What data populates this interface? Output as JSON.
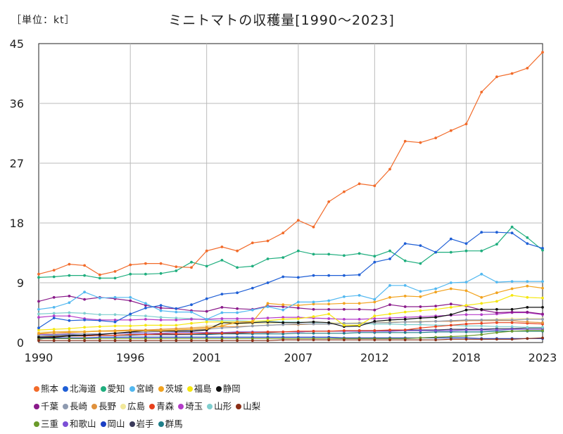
{
  "unit_label": "［単位：kt］",
  "title": "ミニトマトの収穫量[1990～2023]",
  "chart_data": {
    "type": "line",
    "title": "ミニトマトの収穫量[1990～2023]",
    "unit": "［単位：kt］",
    "xlabel": "",
    "ylabel": "",
    "x": [
      1990,
      1991,
      1992,
      1993,
      1994,
      1995,
      1996,
      1997,
      1998,
      1999,
      2000,
      2001,
      2002,
      2003,
      2004,
      2005,
      2006,
      2007,
      2008,
      2009,
      2010,
      2011,
      2012,
      2013,
      2014,
      2015,
      2016,
      2017,
      2018,
      2019,
      2020,
      2021,
      2022,
      2023
    ],
    "xlim": [
      1990,
      2023
    ],
    "ylim": [
      0,
      45
    ],
    "x_ticks": [
      1990,
      1996,
      2001,
      2007,
      2012,
      2018,
      2023
    ],
    "y_ticks": [
      0,
      9,
      18,
      27,
      36,
      45
    ],
    "grid": true,
    "legend_position": "bottom",
    "series": [
      {
        "name": "熊本",
        "color": "#f26b2a",
        "values": [
          10.3,
          10.9,
          11.8,
          11.6,
          10.2,
          10.7,
          11.7,
          11.9,
          11.9,
          11.4,
          11.3,
          13.8,
          14.4,
          13.8,
          15.0,
          15.3,
          16.5,
          18.4,
          17.4,
          21.2,
          22.7,
          23.9,
          23.6,
          26.1,
          30.3,
          30.1,
          30.8,
          31.9,
          32.9,
          37.7,
          40.0,
          40.5,
          41.3,
          43.7
        ]
      },
      {
        "name": "北海道",
        "color": "#1f5fd6",
        "values": [
          2.2,
          3.7,
          3.3,
          3.4,
          3.3,
          3.1,
          4.3,
          5.2,
          5.6,
          5.1,
          5.7,
          6.6,
          7.3,
          7.5,
          8.2,
          9.0,
          9.9,
          9.8,
          10.1,
          10.1,
          10.1,
          10.2,
          12.1,
          12.6,
          14.9,
          14.6,
          13.6,
          15.6,
          14.9,
          16.6,
          16.6,
          16.5,
          14.9,
          14.2
        ]
      },
      {
        "name": "愛知",
        "color": "#1fae7e",
        "values": [
          9.8,
          9.9,
          10.1,
          10.1,
          9.7,
          9.7,
          10.3,
          10.3,
          10.4,
          10.8,
          12.1,
          11.5,
          12.4,
          11.3,
          11.5,
          12.6,
          12.8,
          13.8,
          13.3,
          13.3,
          13.1,
          13.4,
          13.0,
          13.8,
          12.3,
          11.9,
          13.6,
          13.6,
          13.8,
          13.8,
          14.8,
          17.4,
          15.8,
          13.9
        ]
      },
      {
        "name": "宮崎",
        "color": "#52b8f0",
        "values": [
          5.0,
          5.3,
          6.0,
          7.6,
          6.7,
          6.8,
          6.8,
          5.9,
          4.8,
          4.6,
          4.6,
          3.5,
          4.5,
          4.5,
          4.9,
          5.4,
          4.9,
          6.1,
          6.1,
          6.3,
          6.9,
          7.1,
          6.5,
          8.6,
          8.6,
          7.7,
          8.1,
          9.0,
          9.1,
          10.3,
          9.1,
          9.2,
          9.2,
          9.2
        ]
      },
      {
        "name": "茨城",
        "color": "#f2a31f",
        "values": [
          1.4,
          1.6,
          1.6,
          1.6,
          1.7,
          1.7,
          1.8,
          1.8,
          1.8,
          1.9,
          2.0,
          2.1,
          2.5,
          3.1,
          3.1,
          5.9,
          5.7,
          5.6,
          5.8,
          5.8,
          5.9,
          5.9,
          6.1,
          6.8,
          7.0,
          6.9,
          7.6,
          8.1,
          7.8,
          6.8,
          7.5,
          8.1,
          8.5,
          8.2
        ]
      },
      {
        "name": "福島",
        "color": "#f5e70f",
        "values": [
          1.9,
          2.0,
          2.1,
          2.3,
          2.4,
          2.5,
          2.5,
          2.6,
          2.6,
          2.6,
          2.9,
          3.1,
          3.1,
          3.1,
          3.2,
          3.3,
          3.5,
          3.6,
          3.9,
          4.3,
          2.6,
          2.6,
          4.0,
          4.3,
          4.6,
          4.8,
          5.0,
          5.3,
          5.6,
          5.9,
          6.2,
          7.1,
          6.8,
          6.7
        ]
      },
      {
        "name": "静岡",
        "color": "#111111",
        "values": [
          0.8,
          0.8,
          1.0,
          1.1,
          1.2,
          1.4,
          1.6,
          1.8,
          1.7,
          1.7,
          1.7,
          1.9,
          3.0,
          2.9,
          3.0,
          3.1,
          3.0,
          3.0,
          3.1,
          3.0,
          2.4,
          2.5,
          3.2,
          3.4,
          3.5,
          3.7,
          3.8,
          4.2,
          4.9,
          5.0,
          5.0,
          5.0,
          5.3,
          5.3
        ]
      },
      {
        "name": "千葉",
        "color": "#8a1a8a",
        "values": [
          6.2,
          6.8,
          7.0,
          6.5,
          6.8,
          6.6,
          6.3,
          5.6,
          5.2,
          5.1,
          4.8,
          4.7,
          5.3,
          5.1,
          5.0,
          5.5,
          5.4,
          5.2,
          5.0,
          5.0,
          5.0,
          5.0,
          4.9,
          5.7,
          5.4,
          5.4,
          5.5,
          5.8,
          5.5,
          4.9,
          4.5,
          4.6,
          4.6,
          4.3
        ]
      },
      {
        "name": "長崎",
        "color": "#8e9ab0",
        "values": [
          1.0,
          1.1,
          1.2,
          1.3,
          1.3,
          1.4,
          1.5,
          1.6,
          1.7,
          1.8,
          1.9,
          2.0,
          2.2,
          2.3,
          2.5,
          2.6,
          2.7,
          2.8,
          2.8,
          2.8,
          2.9,
          2.9,
          3.0,
          3.0,
          3.1,
          3.1,
          3.2,
          3.3,
          3.4,
          3.4,
          3.4,
          3.4,
          3.5,
          3.5
        ]
      },
      {
        "name": "長野",
        "color": "#e0913d",
        "values": [
          1.3,
          1.4,
          1.5,
          1.6,
          1.7,
          1.8,
          1.9,
          1.9,
          2.0,
          2.1,
          2.2,
          2.3,
          2.4,
          2.4,
          2.5,
          2.6,
          2.7,
          2.7,
          2.8,
          2.8,
          2.9,
          2.9,
          3.0,
          3.0,
          3.1,
          3.1,
          3.2,
          3.2,
          3.3,
          3.3,
          3.3,
          3.3,
          3.1,
          3.0
        ]
      },
      {
        "name": "広島",
        "color": "#f2e89a",
        "values": [
          1.6,
          1.6,
          1.7,
          1.7,
          1.8,
          1.8,
          1.8,
          1.9,
          1.9,
          2.0,
          2.2,
          2.5,
          2.7,
          2.8,
          2.9,
          2.9,
          3.0,
          3.0,
          3.1,
          3.0,
          2.9,
          3.0,
          3.0,
          3.1,
          3.1,
          3.2,
          3.2,
          3.3,
          3.3,
          3.4,
          3.5,
          3.6,
          3.6,
          3.6
        ]
      },
      {
        "name": "青森",
        "color": "#e8401c",
        "values": [
          0.8,
          0.9,
          1.0,
          1.0,
          1.1,
          1.1,
          1.2,
          1.2,
          1.3,
          1.3,
          1.3,
          1.4,
          1.4,
          1.5,
          1.5,
          1.6,
          1.6,
          1.7,
          1.7,
          1.7,
          1.8,
          1.8,
          1.8,
          1.9,
          1.9,
          2.2,
          2.4,
          2.6,
          2.8,
          2.9,
          3.0,
          3.0,
          2.9,
          2.8
        ]
      },
      {
        "name": "埼玉",
        "color": "#b43cc9",
        "values": [
          3.8,
          4.0,
          4.0,
          3.6,
          3.4,
          3.4,
          3.4,
          3.5,
          3.4,
          3.4,
          3.5,
          3.5,
          3.6,
          3.6,
          3.6,
          3.7,
          3.8,
          3.8,
          3.7,
          3.6,
          3.5,
          3.5,
          3.6,
          3.7,
          3.8,
          3.9,
          4.0,
          4.1,
          4.2,
          4.2,
          4.3,
          4.5,
          4.5,
          4.2
        ]
      },
      {
        "name": "山形",
        "color": "#7fcfcf",
        "values": [
          4.3,
          4.4,
          4.5,
          4.4,
          4.2,
          4.2,
          4.1,
          4.0,
          3.8,
          3.7,
          3.6,
          3.4,
          3.3,
          3.3,
          3.2,
          3.2,
          3.1,
          3.1,
          3.0,
          3.0,
          2.9,
          2.9,
          2.8,
          2.8,
          2.7,
          2.7,
          2.6,
          2.6,
          2.5,
          2.5,
          2.4,
          2.4,
          2.3,
          2.3
        ]
      },
      {
        "name": "山梨",
        "color": "#8b2e16",
        "values": [
          0.3,
          0.3,
          0.3,
          0.3,
          0.3,
          0.3,
          0.3,
          0.3,
          0.3,
          0.3,
          0.3,
          0.3,
          0.3,
          0.3,
          0.3,
          0.3,
          0.4,
          0.4,
          0.4,
          0.4,
          0.4,
          0.4,
          0.4,
          0.4,
          0.4,
          0.4,
          0.4,
          0.5,
          0.5,
          0.5,
          0.5,
          0.5,
          0.6,
          0.7
        ]
      },
      {
        "name": "三重",
        "color": "#6a9a2a",
        "values": [
          0.6,
          0.6,
          0.6,
          0.6,
          0.6,
          0.6,
          0.6,
          0.6,
          0.6,
          0.6,
          0.6,
          0.6,
          0.6,
          0.6,
          0.6,
          0.6,
          0.6,
          0.6,
          0.6,
          0.6,
          0.6,
          0.6,
          0.6,
          0.6,
          0.6,
          0.7,
          0.8,
          0.9,
          1.0,
          1.2,
          1.5,
          1.7,
          1.8,
          1.8
        ]
      },
      {
        "name": "和歌山",
        "color": "#7b4fd6",
        "values": [
          1.2,
          1.2,
          1.3,
          1.3,
          1.3,
          1.4,
          1.4,
          1.4,
          1.4,
          1.5,
          1.5,
          1.5,
          1.5,
          1.6,
          1.6,
          1.6,
          1.6,
          1.6,
          1.7,
          1.7,
          1.7,
          1.7,
          1.7,
          1.7,
          1.8,
          1.8,
          1.8,
          1.8,
          1.9,
          1.9,
          1.9,
          2.0,
          2.0,
          2.0
        ]
      },
      {
        "name": "岡山",
        "color": "#1a3fc4",
        "values": [
          0.7,
          0.7,
          0.7,
          0.7,
          0.8,
          0.8,
          0.8,
          0.8,
          0.8,
          0.8,
          0.8,
          0.8,
          0.8,
          0.8,
          0.8,
          0.8,
          0.8,
          0.8,
          0.8,
          0.8,
          0.7,
          0.7,
          0.7,
          0.7,
          0.7,
          0.7,
          0.7,
          0.7,
          0.7,
          0.6,
          0.6,
          0.6,
          0.6,
          0.6
        ]
      },
      {
        "name": "岩手",
        "color": "#3a3a5a",
        "values": [
          0.5,
          0.8,
          1.1,
          1.0,
          1.1,
          1.1,
          1.2,
          1.2,
          1.2,
          1.2,
          1.3,
          1.3,
          1.4,
          1.4,
          1.5,
          1.5,
          1.6,
          1.6,
          1.7,
          1.7,
          1.7,
          1.8,
          1.8,
          1.8,
          1.9,
          1.9,
          1.9,
          2.0,
          2.0,
          2.0,
          2.1,
          2.1,
          2.2,
          2.2
        ]
      },
      {
        "name": "群馬",
        "color": "#1f7f8a",
        "values": [
          1.0,
          1.0,
          1.1,
          1.1,
          1.1,
          1.1,
          1.1,
          1.2,
          1.2,
          1.2,
          1.2,
          1.2,
          1.3,
          1.3,
          1.3,
          1.3,
          1.3,
          1.4,
          1.4,
          1.4,
          1.4,
          1.5,
          1.5,
          1.5,
          1.5,
          1.5,
          1.6,
          1.6,
          1.6,
          1.6,
          1.7,
          1.7,
          1.7,
          1.7
        ]
      }
    ]
  }
}
